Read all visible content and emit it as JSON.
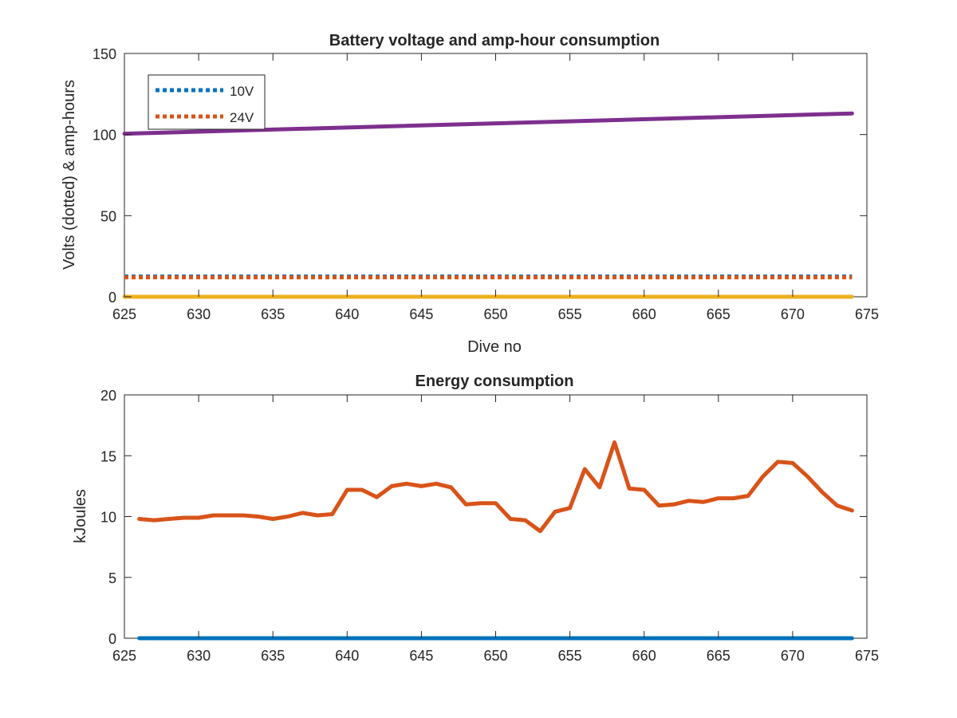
{
  "chart_data": [
    {
      "type": "line",
      "title": "Battery voltage and amp-hour consumption",
      "xlabel": "Dive no",
      "ylabel": "Volts (dotted) & amp-hours",
      "xlim": [
        625,
        675
      ],
      "ylim": [
        0,
        150
      ],
      "xticks": [
        "625",
        "630",
        "635",
        "640",
        "645",
        "650",
        "655",
        "660",
        "665",
        "670",
        "675"
      ],
      "yticks": [
        "0",
        "50",
        "100",
        "150"
      ],
      "legend_position": "top-left",
      "grid": false,
      "series": [
        {
          "name": "10V",
          "style": "dotted",
          "color": "#0072BD",
          "x": [
            625,
            674
          ],
          "y": [
            12.5,
            12.5
          ]
        },
        {
          "name": "24V",
          "style": "dotted",
          "color": "#D95319",
          "x": [
            625,
            674
          ],
          "y": [
            12,
            12
          ]
        },
        {
          "style": "solid",
          "color": "#EDB120",
          "x": [
            625,
            674
          ],
          "y": [
            0,
            0
          ]
        },
        {
          "style": "solid",
          "color": "#7E2F8E",
          "x": [
            625,
            674
          ],
          "y": [
            100.5,
            113
          ]
        }
      ]
    },
    {
      "type": "line",
      "title": "Energy consumption",
      "xlabel": "",
      "ylabel": "kJoules",
      "xlim": [
        625,
        675
      ],
      "ylim": [
        0,
        20
      ],
      "xticks": [
        "625",
        "630",
        "635",
        "640",
        "645",
        "650",
        "655",
        "660",
        "665",
        "670",
        "675"
      ],
      "yticks": [
        "0",
        "5",
        "10",
        "15",
        "20"
      ],
      "grid": false,
      "series": [
        {
          "style": "solid",
          "color": "#0072BD",
          "x": [
            626,
            674
          ],
          "y": [
            0,
            0
          ]
        },
        {
          "style": "solid",
          "color": "#D95319",
          "x": [
            626,
            627,
            628,
            629,
            630,
            631,
            632,
            633,
            634,
            635,
            636,
            637,
            638,
            639,
            640,
            641,
            642,
            643,
            644,
            645,
            646,
            647,
            648,
            649,
            650,
            651,
            652,
            653,
            654,
            655,
            656,
            657,
            658,
            659,
            660,
            661,
            662,
            663,
            664,
            665,
            666,
            667,
            668,
            669,
            670,
            671,
            672,
            673,
            674
          ],
          "y": [
            9.8,
            9.7,
            9.8,
            9.9,
            9.9,
            10.1,
            10.1,
            10.1,
            10.0,
            9.8,
            10.0,
            10.3,
            10.1,
            10.2,
            12.2,
            12.2,
            11.6,
            12.5,
            12.7,
            12.5,
            12.7,
            12.4,
            11.0,
            11.1,
            11.1,
            9.8,
            9.7,
            8.8,
            10.4,
            10.7,
            13.9,
            12.4,
            16.1,
            12.3,
            12.2,
            10.9,
            11.0,
            11.3,
            11.2,
            11.5,
            11.5,
            11.7,
            13.3,
            14.5,
            14.4,
            13.3,
            12.0,
            10.9,
            10.5
          ]
        }
      ]
    }
  ]
}
